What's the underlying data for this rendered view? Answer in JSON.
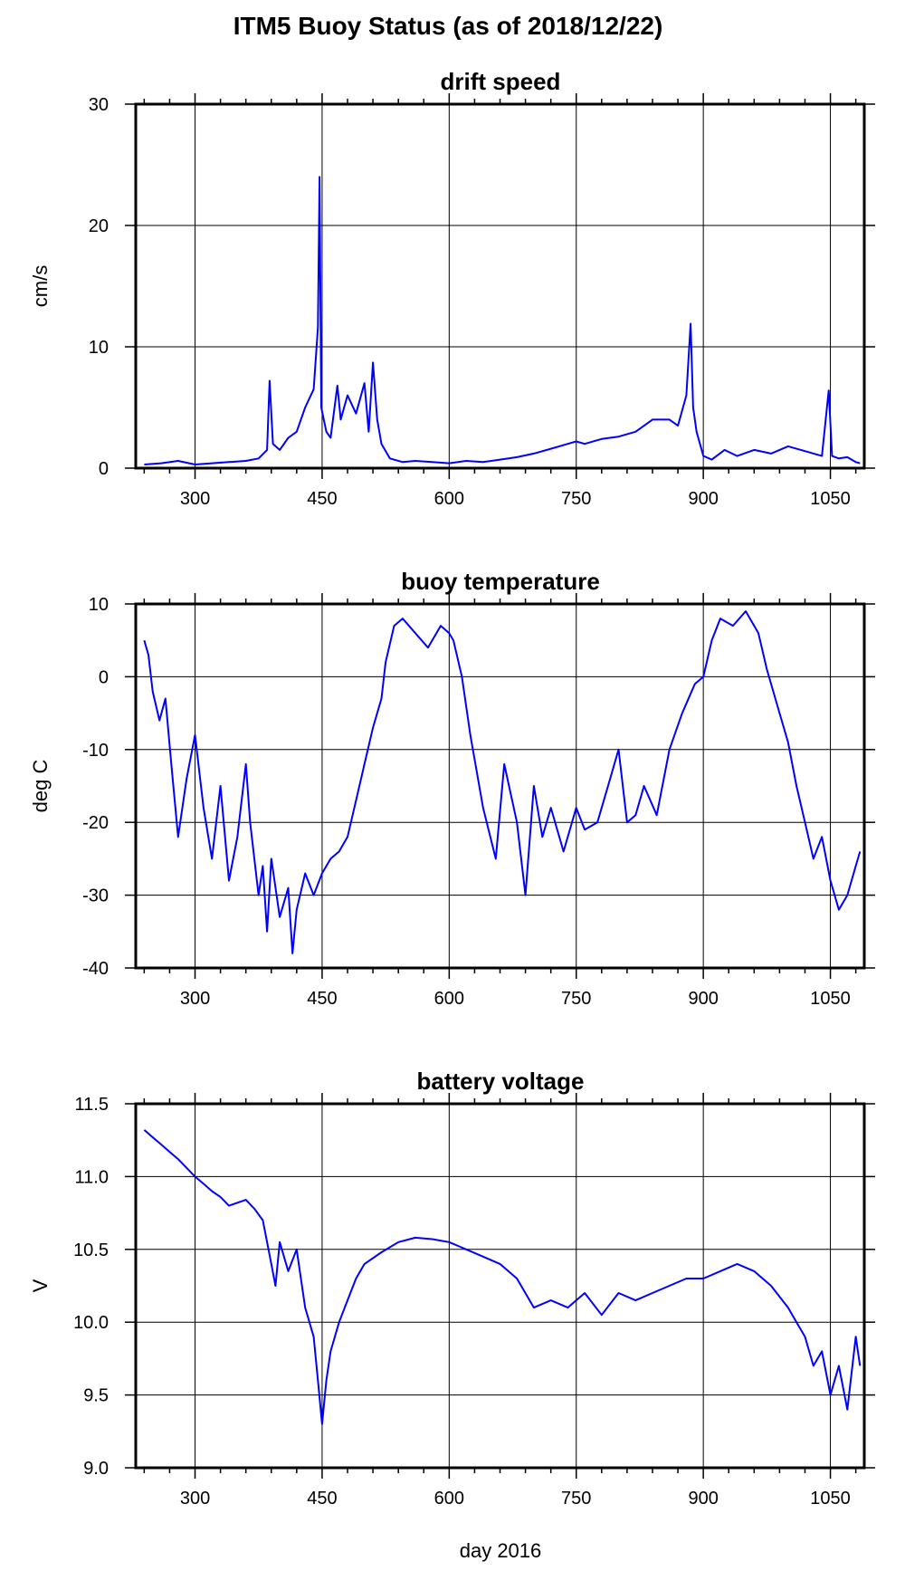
{
  "figure": {
    "title": "ITM5 Buoy Status (as of 2018/12/22)",
    "xlabel": "day 2016",
    "line_color": "#0000ff"
  },
  "chart_data": [
    {
      "type": "line",
      "title": "drift speed",
      "xlabel": "",
      "ylabel": "cm/s",
      "xlim": [
        230,
        1090
      ],
      "ylim": [
        0,
        30
      ],
      "xticks": [
        300,
        450,
        600,
        750,
        900,
        1050
      ],
      "yticks": [
        0,
        10,
        20,
        30
      ],
      "ytick_labels": [
        "0",
        "10",
        "20",
        "30"
      ],
      "grid": true,
      "series": [
        {
          "x": [
            240,
            260,
            280,
            300,
            320,
            340,
            360,
            375,
            385,
            388,
            392,
            400,
            410,
            420,
            430,
            440,
            445,
            447,
            449,
            452,
            455,
            460,
            468,
            472,
            480,
            490,
            500,
            505,
            510,
            515,
            520,
            530,
            545,
            560,
            580,
            600,
            620,
            640,
            660,
            680,
            700,
            720,
            740,
            750,
            760,
            780,
            800,
            820,
            840,
            860,
            870,
            880,
            885,
            888,
            892,
            900,
            910,
            925,
            940,
            960,
            980,
            1000,
            1020,
            1040,
            1048,
            1052,
            1060,
            1070,
            1080,
            1085
          ],
          "y": [
            0.3,
            0.4,
            0.6,
            0.3,
            0.4,
            0.5,
            0.6,
            0.8,
            1.5,
            7.2,
            2.0,
            1.5,
            2.5,
            3.0,
            5.0,
            6.5,
            11.6,
            24.0,
            5.0,
            4.0,
            3.0,
            2.5,
            6.8,
            4.0,
            6.0,
            4.5,
            7.0,
            3.0,
            8.7,
            4.0,
            2.0,
            0.8,
            0.5,
            0.6,
            0.5,
            0.4,
            0.6,
            0.5,
            0.7,
            0.9,
            1.2,
            1.6,
            2.0,
            2.2,
            2.0,
            2.4,
            2.6,
            3.0,
            4.0,
            4.0,
            3.5,
            6.0,
            11.9,
            5.0,
            3.0,
            1.0,
            0.7,
            1.5,
            1.0,
            1.5,
            1.2,
            1.8,
            1.4,
            1.0,
            6.4,
            1.0,
            0.8,
            0.9,
            0.5,
            0.4
          ]
        }
      ]
    },
    {
      "type": "line",
      "title": "buoy temperature",
      "xlabel": "",
      "ylabel": "deg C",
      "xlim": [
        230,
        1090
      ],
      "ylim": [
        -40,
        10
      ],
      "xticks": [
        300,
        450,
        600,
        750,
        900,
        1050
      ],
      "yticks": [
        -40,
        -30,
        -20,
        -10,
        0,
        10
      ],
      "ytick_labels": [
        "-40",
        "-30",
        "-20",
        "-10",
        "0",
        "10"
      ],
      "grid": true,
      "series": [
        {
          "x": [
            240,
            245,
            250,
            258,
            265,
            272,
            280,
            290,
            300,
            310,
            320,
            330,
            340,
            350,
            360,
            365,
            375,
            380,
            385,
            390,
            400,
            410,
            415,
            420,
            430,
            440,
            450,
            460,
            470,
            480,
            490,
            500,
            510,
            520,
            525,
            535,
            545,
            560,
            575,
            590,
            600,
            605,
            615,
            625,
            640,
            655,
            665,
            680,
            690,
            700,
            710,
            720,
            735,
            750,
            760,
            775,
            790,
            800,
            810,
            820,
            830,
            845,
            860,
            875,
            890,
            900,
            910,
            920,
            935,
            950,
            965,
            975,
            990,
            1000,
            1010,
            1020,
            1030,
            1040,
            1050,
            1060,
            1070,
            1080,
            1085
          ],
          "y": [
            5,
            3,
            -2,
            -6,
            -3,
            -12,
            -22,
            -14,
            -8,
            -18,
            -25,
            -15,
            -28,
            -22,
            -12,
            -20,
            -30,
            -26,
            -35,
            -25,
            -33,
            -29,
            -38,
            -32,
            -27,
            -30,
            -27,
            -25,
            -24,
            -22,
            -17,
            -12,
            -7,
            -3,
            2,
            7,
            8,
            6,
            4,
            7,
            6,
            5,
            0,
            -8,
            -18,
            -25,
            -12,
            -20,
            -30,
            -15,
            -22,
            -18,
            -24,
            -18,
            -21,
            -20,
            -14,
            -10,
            -20,
            -19,
            -15,
            -19,
            -10,
            -5,
            -1,
            0,
            5,
            8,
            7,
            9,
            6,
            1,
            -5,
            -9,
            -15,
            -20,
            -25,
            -22,
            -28,
            -32,
            -30,
            -26,
            -24
          ]
        }
      ]
    },
    {
      "type": "line",
      "title": "battery voltage",
      "xlabel": "day 2016",
      "ylabel": "V",
      "xlim": [
        230,
        1090
      ],
      "ylim": [
        9.0,
        11.5
      ],
      "xticks": [
        300,
        450,
        600,
        750,
        900,
        1050
      ],
      "yticks": [
        9.0,
        9.5,
        10.0,
        10.5,
        11.0,
        11.5
      ],
      "ytick_labels": [
        "9.0",
        "9.5",
        "10.0",
        "10.5",
        "11.0",
        "11.5"
      ],
      "grid": true,
      "series": [
        {
          "x": [
            240,
            250,
            260,
            270,
            280,
            290,
            300,
            310,
            320,
            330,
            340,
            350,
            360,
            370,
            380,
            390,
            395,
            400,
            410,
            420,
            425,
            430,
            440,
            445,
            450,
            455,
            460,
            470,
            480,
            490,
            500,
            520,
            540,
            560,
            580,
            600,
            620,
            640,
            660,
            680,
            700,
            720,
            740,
            760,
            780,
            800,
            820,
            840,
            860,
            880,
            900,
            920,
            940,
            960,
            980,
            1000,
            1010,
            1020,
            1030,
            1040,
            1050,
            1060,
            1070,
            1080,
            1085
          ],
          "y": [
            11.32,
            11.27,
            11.22,
            11.17,
            11.12,
            11.06,
            11.0,
            10.95,
            10.9,
            10.86,
            10.8,
            10.82,
            10.84,
            10.78,
            10.7,
            10.4,
            10.25,
            10.55,
            10.35,
            10.5,
            10.3,
            10.1,
            9.9,
            9.6,
            9.3,
            9.6,
            9.8,
            10.0,
            10.15,
            10.3,
            10.4,
            10.48,
            10.55,
            10.58,
            10.57,
            10.55,
            10.5,
            10.45,
            10.4,
            10.3,
            10.1,
            10.15,
            10.1,
            10.2,
            10.05,
            10.2,
            10.15,
            10.2,
            10.25,
            10.3,
            10.3,
            10.35,
            10.4,
            10.35,
            10.25,
            10.1,
            10.0,
            9.9,
            9.7,
            9.8,
            9.5,
            9.7,
            9.4,
            9.9,
            9.7
          ]
        }
      ]
    }
  ]
}
